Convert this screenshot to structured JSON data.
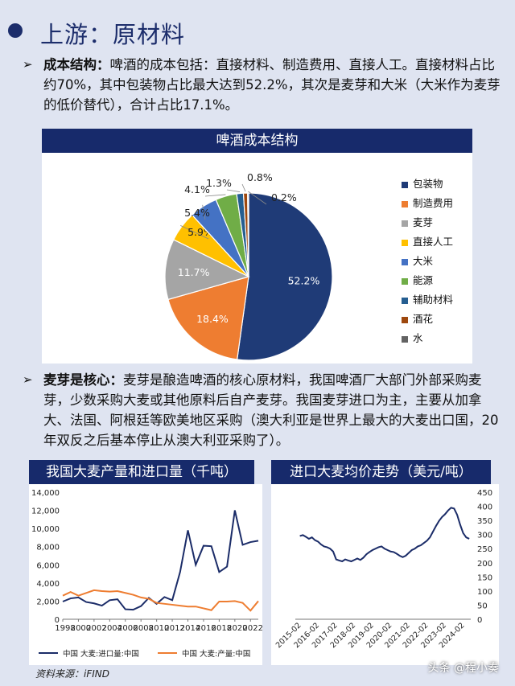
{
  "page": {
    "title": "上游：原材料",
    "para1": {
      "lead": "成本结构：",
      "body": "啤酒的成本包括：直接材料、制造费用、直接人工。直接材料占比约70%，其中包装物占比最大达到52.2%，其次是麦芽和大米（大米作为麦芽的低价替代），合计占比17.1%。"
    },
    "para2": {
      "lead": "麦芽是核心：",
      "body": "麦芽是酿造啤酒的核心原材料，我国啤酒厂大部门外部采购麦芽，少数采购大麦或其他原料后自产麦芽。我国麦芽进口为主，主要从加拿大、法国、阿根廷等欧美地区采购（澳大利亚是世界上最大的大麦出口国，20年双反之后基本停止从澳大利亚采购了）。"
    },
    "source": "资料来源：iFIND",
    "watermark": "头条 @程小奏"
  },
  "chart_data": [
    {
      "type": "pie",
      "title": "啤酒成本结构",
      "labels": [
        "包装物",
        "制造费用",
        "麦芽",
        "直接人工",
        "大米",
        "能源",
        "辅助材料",
        "酒花",
        "水"
      ],
      "values": [
        52.2,
        18.4,
        11.7,
        5.9,
        5.4,
        4.1,
        1.3,
        0.8,
        0.2
      ],
      "value_labels": [
        "52.2%",
        "18.4%",
        "11.7%",
        "5.9%",
        "5.4%",
        "4.1%",
        "1.3%",
        "0.8%",
        "0.2%"
      ],
      "colors": [
        "#1f3b77",
        "#ee7d31",
        "#a5a5a5",
        "#ffc000",
        "#4472c4",
        "#70ad47",
        "#255e91",
        "#9e480e",
        "#636363"
      ],
      "legend": "right"
    },
    {
      "type": "line",
      "title": "我国大麦产量和进口量（千吨）",
      "x": [
        1998,
        1999,
        2000,
        2001,
        2002,
        2003,
        2004,
        2005,
        2006,
        2007,
        2008,
        2009,
        2010,
        2011,
        2012,
        2013,
        2014,
        2015,
        2016,
        2017,
        2018,
        2019,
        2020,
        2021,
        2022,
        2023
      ],
      "xticks": [
        1998,
        2000,
        2002,
        2004,
        2006,
        2008,
        2010,
        2012,
        2014,
        2016,
        2018,
        2020,
        2022
      ],
      "xticks_text": [
        "1998",
        "2000",
        "2002",
        "2004",
        "2006",
        "2008",
        "2010",
        "2012",
        "2014",
        "2016",
        "2018",
        "2020",
        "2022"
      ],
      "ylim": [
        0,
        14000
      ],
      "yticks": [
        0,
        2000,
        4000,
        6000,
        8000,
        10000,
        12000,
        14000
      ],
      "yticks_text": [
        "0",
        "2,000",
        "4,000",
        "6,000",
        "8,000",
        "10,000",
        "12,000",
        "14,000"
      ],
      "series": [
        {
          "name": "中国 大麦:进口量:中国",
          "color": "#1b2c68",
          "values": [
            1950,
            2300,
            2400,
            1900,
            1750,
            1500,
            2100,
            2200,
            1100,
            1050,
            1450,
            2350,
            1700,
            2450,
            2100,
            5200,
            9800,
            6000,
            8100,
            8050,
            5200,
            5800,
            12000,
            8200,
            8500,
            8650
          ]
        },
        {
          "name": "中国 大麦:产量:中国",
          "color": "#ee7d31",
          "values": [
            2600,
            3000,
            2600,
            2900,
            3200,
            3100,
            3050,
            3100,
            2900,
            2700,
            2400,
            2250,
            1800,
            1700,
            1600,
            1500,
            1400,
            1400,
            1200,
            1000,
            1950,
            1950,
            2000,
            1800,
            950,
            2000
          ]
        }
      ],
      "legend": "bottom"
    },
    {
      "type": "line",
      "title": "进口大麦均价走势（美元/吨）",
      "xticks_text": [
        "2015-02",
        "2016-02",
        "2017-02",
        "2018-02",
        "2019-02",
        "2020-02",
        "2021-02",
        "2022-02",
        "2023-02",
        "2024-02"
      ],
      "x": [
        "2015-01",
        "2015-03",
        "2015-05",
        "2015-07",
        "2015-09",
        "2015-11",
        "2016-01",
        "2016-03",
        "2016-05",
        "2016-07",
        "2016-09",
        "2016-11",
        "2017-01",
        "2017-03",
        "2017-05",
        "2017-07",
        "2017-09",
        "2017-11",
        "2018-01",
        "2018-03",
        "2018-05",
        "2018-07",
        "2018-09",
        "2018-11",
        "2019-01",
        "2019-03",
        "2019-05",
        "2019-07",
        "2019-09",
        "2019-11",
        "2020-01",
        "2020-03",
        "2020-05",
        "2020-07",
        "2020-09",
        "2020-11",
        "2021-01",
        "2021-03",
        "2021-05",
        "2021-07",
        "2021-09",
        "2021-11",
        "2022-01",
        "2022-03",
        "2022-05",
        "2022-07",
        "2022-09",
        "2022-11",
        "2023-01",
        "2023-03",
        "2023-05",
        "2023-07",
        "2023-09",
        "2023-11",
        "2024-01",
        "2024-03",
        "2024-05"
      ],
      "ylim": [
        0,
        450
      ],
      "yticks": [
        0,
        50,
        100,
        150,
        200,
        250,
        300,
        350,
        400,
        450
      ],
      "yticks_text": [
        "0",
        "50",
        "100",
        "150",
        "200",
        "250",
        "300",
        "350",
        "400",
        "450"
      ],
      "series": [
        {
          "name": "",
          "color": "#1b2c68",
          "values": [
            295,
            298,
            292,
            285,
            290,
            280,
            275,
            265,
            258,
            255,
            250,
            240,
            212,
            208,
            205,
            212,
            208,
            205,
            210,
            215,
            210,
            218,
            230,
            238,
            245,
            250,
            255,
            258,
            250,
            245,
            240,
            238,
            232,
            225,
            220,
            225,
            235,
            245,
            250,
            258,
            262,
            270,
            278,
            290,
            310,
            330,
            348,
            362,
            372,
            385,
            395,
            392,
            370,
            335,
            305,
            290,
            285
          ]
        }
      ]
    }
  ]
}
